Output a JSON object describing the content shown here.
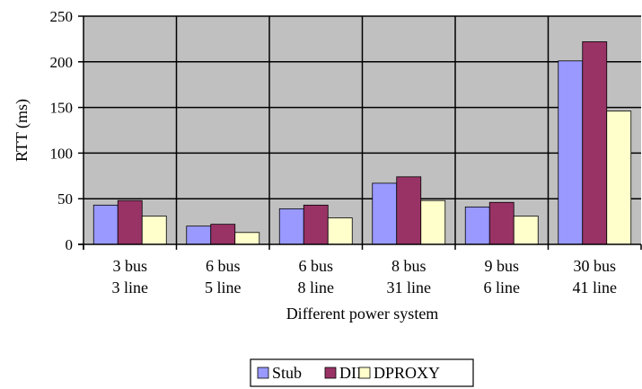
{
  "chart_data": {
    "type": "bar",
    "title": "",
    "xlabel": "Different power system",
    "ylabel": "RTT (ms)",
    "ylim": [
      0,
      250
    ],
    "yticks": [
      0,
      50,
      100,
      150,
      200,
      250
    ],
    "grid": true,
    "legend_position": "bottom",
    "categories": [
      [
        "3 bus",
        "3 line"
      ],
      [
        "6 bus",
        "5 line"
      ],
      [
        "6 bus",
        "8 line"
      ],
      [
        "8 bus",
        "31 line"
      ],
      [
        "9 bus",
        "6 line"
      ],
      [
        "30 bus",
        "41 line"
      ]
    ],
    "series": [
      {
        "name": "Stub",
        "color": "#9999ff",
        "values": [
          43,
          20,
          39,
          67,
          41,
          201
        ]
      },
      {
        "name": "DII",
        "color": "#993366",
        "values": [
          48,
          22,
          43,
          74,
          46,
          222
        ]
      },
      {
        "name": "DPROXY",
        "color": "#ffffcc",
        "values": [
          31,
          13,
          29,
          48,
          31,
          146
        ]
      }
    ],
    "plot_background": "#c0c0c0"
  }
}
